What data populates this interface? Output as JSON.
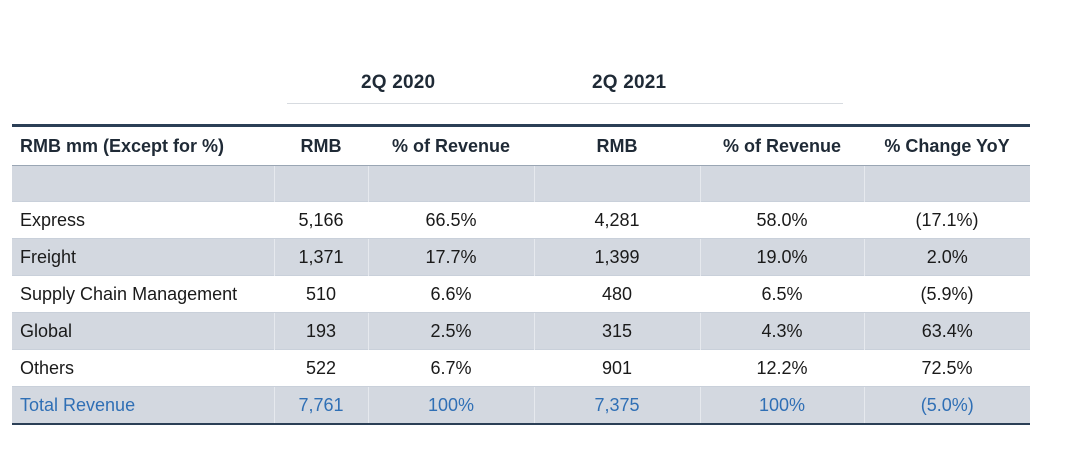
{
  "period_headers": {
    "p2020": "2Q 2020",
    "p2021": "2Q 2021"
  },
  "table": {
    "columns": [
      "RMB mm (Except for %)",
      "RMB",
      "% of Revenue",
      "RMB",
      "% of Revenue",
      "% Change YoY"
    ],
    "rows": [
      {
        "label": "Express",
        "rmb_2020": "5,166",
        "pct_2020": "66.5%",
        "rmb_2021": "4,281",
        "pct_2021": "58.0%",
        "yoy": "(17.1%)"
      },
      {
        "label": "Freight",
        "rmb_2020": "1,371",
        "pct_2020": "17.7%",
        "rmb_2021": "1,399",
        "pct_2021": "19.0%",
        "yoy": "2.0%"
      },
      {
        "label": "Supply Chain Management",
        "rmb_2020": "510",
        "pct_2020": "6.6%",
        "rmb_2021": "480",
        "pct_2021": "6.5%",
        "yoy": "(5.9%)"
      },
      {
        "label": "Global",
        "rmb_2020": "193",
        "pct_2020": "2.5%",
        "rmb_2021": "315",
        "pct_2021": "4.3%",
        "yoy": "63.4%"
      },
      {
        "label": "Others",
        "rmb_2020": "522",
        "pct_2020": "6.7%",
        "rmb_2021": "901",
        "pct_2021": "12.2%",
        "yoy": "72.5%"
      }
    ],
    "total": {
      "label": "Total Revenue",
      "rmb_2020": "7,761",
      "pct_2020": "100%",
      "rmb_2021": "7,375",
      "pct_2021": "100%",
      "yoy": "(5.0%)"
    }
  },
  "colors": {
    "header_rule": "#2b3f56",
    "row_shade": "#d3d8e0",
    "total_text": "#2f6fb5"
  }
}
